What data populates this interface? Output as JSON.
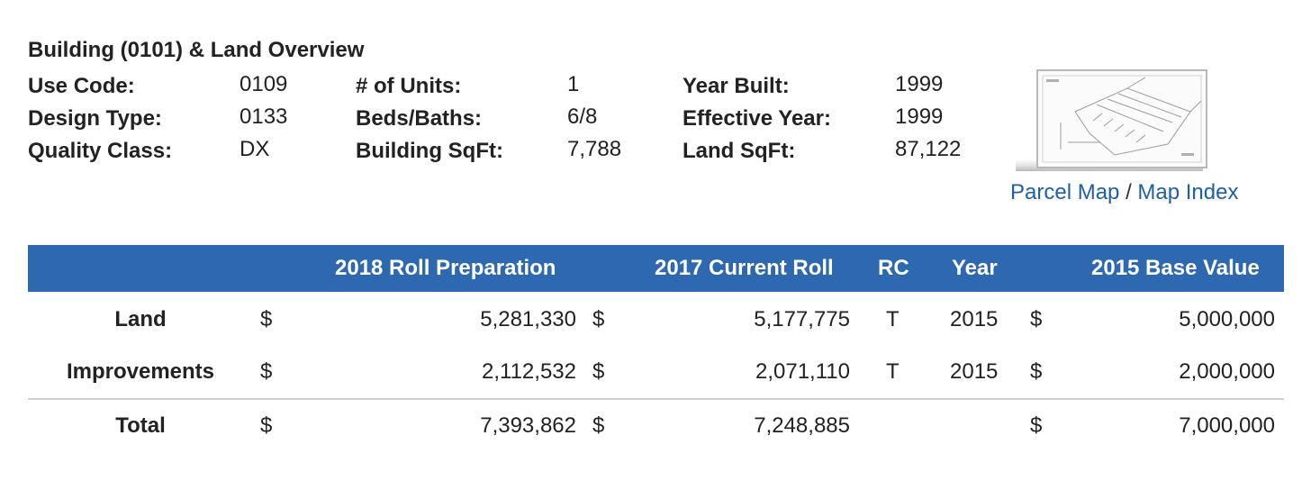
{
  "heading": "Building (0101) & Land Overview",
  "overview": {
    "col1": [
      {
        "label": "Use Code:",
        "value": "0109"
      },
      {
        "label": "Design Type:",
        "value": "0133"
      },
      {
        "label": "Quality Class:",
        "value": "DX"
      }
    ],
    "col2": [
      {
        "label": "# of Units:",
        "value": "1"
      },
      {
        "label": "Beds/Baths:",
        "value": "6/8"
      },
      {
        "label": "Building SqFt:",
        "value": "7,788"
      }
    ],
    "col3": [
      {
        "label": "Year Built:",
        "value": "1999"
      },
      {
        "label": "Effective Year:",
        "value": "1999"
      },
      {
        "label": "Land SqFt:",
        "value": "87,122"
      }
    ]
  },
  "map": {
    "thumbnail_icon": "parcel-map-thumbnail",
    "parcel_map_link": "Parcel Map",
    "separator": "/",
    "map_index_link": "Map Index"
  },
  "table": {
    "headers": {
      "roll_prep": "2018 Roll Preparation",
      "current_roll": "2017 Current Roll",
      "rc": "RC",
      "year": "Year",
      "base_value": "2015 Base Value"
    },
    "currency": "$",
    "rows": [
      {
        "label": "Land",
        "roll_prep": "5,281,330",
        "current_roll": "5,177,775",
        "rc": "T",
        "year": "2015",
        "base_value": "5,000,000"
      },
      {
        "label": "Improvements",
        "roll_prep": "2,112,532",
        "current_roll": "2,071,110",
        "rc": "T",
        "year": "2015",
        "base_value": "2,000,000"
      },
      {
        "label": "Total",
        "roll_prep": "7,393,862",
        "current_roll": "7,248,885",
        "rc": "",
        "year": "",
        "base_value": "7,000,000"
      }
    ]
  },
  "colors": {
    "header_bg": "#2d68b0",
    "link": "#1f5fa6",
    "divider": "#cfcfcf"
  }
}
